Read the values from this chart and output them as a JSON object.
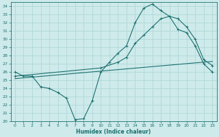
{
  "xlabel": "Humidex (Indice chaleur)",
  "bg_color": "#ceeaea",
  "grid_color": "#b0d8d8",
  "line_color": "#1a6e6e",
  "xlim": [
    -0.5,
    23.5
  ],
  "ylim": [
    20,
    34.5
  ],
  "xtick_labels": [
    "0",
    "1",
    "2",
    "3",
    "4",
    "5",
    "6",
    "7",
    "8",
    "9",
    "10",
    "11",
    "12",
    "13",
    "14",
    "15",
    "16",
    "17",
    "18",
    "19",
    "20",
    "21",
    "22",
    "23"
  ],
  "xticks": [
    0,
    1,
    2,
    3,
    4,
    5,
    6,
    7,
    8,
    9,
    10,
    11,
    12,
    13,
    14,
    15,
    16,
    17,
    18,
    19,
    20,
    21,
    22,
    23
  ],
  "yticks": [
    20,
    21,
    22,
    23,
    24,
    25,
    26,
    27,
    28,
    29,
    30,
    31,
    32,
    33,
    34
  ],
  "curve1_x": [
    0,
    1,
    2,
    3,
    4,
    5,
    6,
    7,
    8,
    9,
    10,
    11,
    12,
    13,
    14,
    15,
    16,
    17,
    18,
    19,
    20,
    21,
    22,
    23
  ],
  "curve1_y": [
    26.0,
    25.5,
    25.5,
    24.2,
    24.0,
    23.5,
    22.8,
    20.2,
    20.3,
    22.5,
    26.0,
    27.2,
    28.3,
    29.2,
    32.0,
    33.8,
    34.3,
    33.5,
    32.8,
    31.2,
    30.8,
    29.2,
    27.0,
    26.0
  ],
  "curve2_x": [
    0,
    10,
    12,
    13,
    14,
    15,
    16,
    17,
    18,
    19,
    20,
    21,
    22,
    23
  ],
  "curve2_y": [
    25.5,
    26.5,
    27.2,
    27.8,
    29.5,
    30.5,
    31.5,
    32.5,
    32.8,
    32.5,
    31.5,
    30.0,
    27.5,
    26.8
  ],
  "curve3_x": [
    0,
    23
  ],
  "curve3_y": [
    25.2,
    27.3
  ]
}
